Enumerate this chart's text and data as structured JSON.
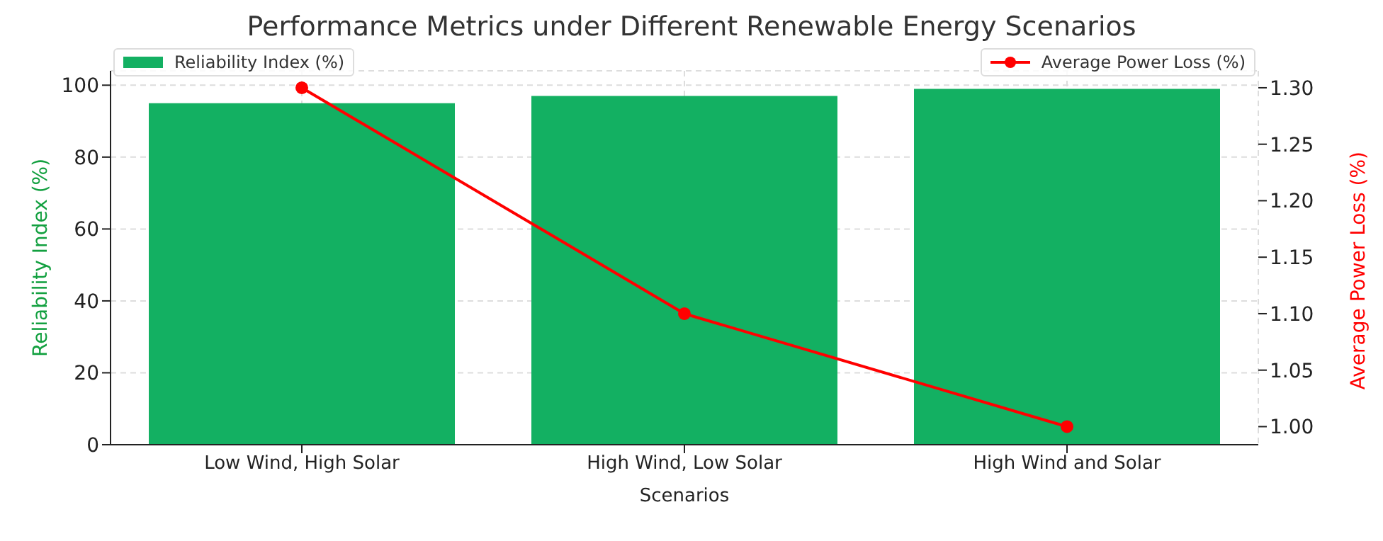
{
  "chart_data": {
    "type": "bar",
    "title": "Performance Metrics under Different Renewable Energy Scenarios",
    "xlabel": "Scenarios",
    "ylabel": "Reliability Index (%)",
    "y2label": "Average Power Loss (%)",
    "categories": [
      "Low Wind, High Solar",
      "High Wind, Low Solar",
      "High Wind and Solar"
    ],
    "series": [
      {
        "name": "Reliability Index (%)",
        "color": "#13b062",
        "values": [
          95,
          97,
          99
        ]
      },
      {
        "name": "Average Power Loss (%)",
        "type": "line",
        "axis": "y2",
        "color": "#ff0000",
        "values": [
          1.3,
          1.1,
          1.0
        ]
      }
    ],
    "ylim": [
      0,
      104
    ],
    "yticks": [
      0,
      20,
      40,
      60,
      80,
      100
    ],
    "y2lim": [
      0.984,
      1.315
    ],
    "y2ticks": [
      {
        "value": 1.0,
        "label": "1.00"
      },
      {
        "value": 1.05,
        "label": "1.05"
      },
      {
        "value": 1.1,
        "label": "1.10"
      },
      {
        "value": 1.15,
        "label": "1.15"
      },
      {
        "value": 1.2,
        "label": "1.20"
      },
      {
        "value": 1.25,
        "label": "1.25"
      },
      {
        "value": 1.3,
        "label": "1.30"
      }
    ],
    "grid": true,
    "legend": "top",
    "marker": "circle",
    "line_style": "solid"
  }
}
